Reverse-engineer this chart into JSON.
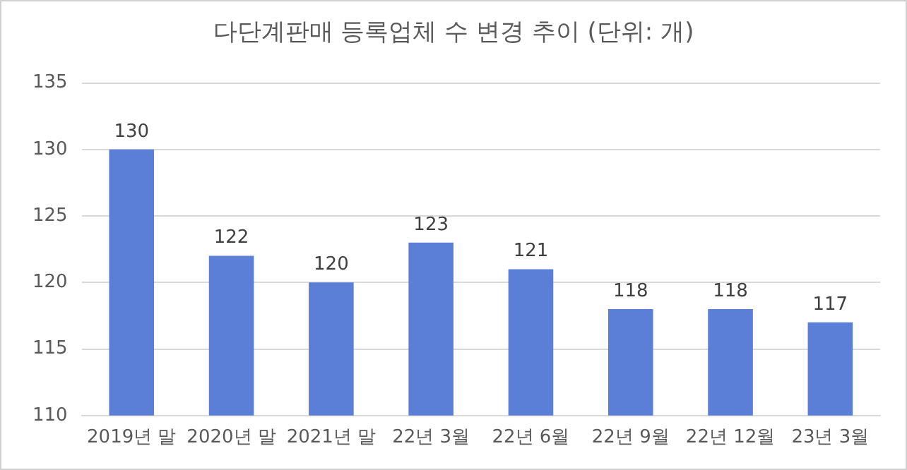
{
  "chart_data": {
    "type": "bar",
    "title": "다단계판매 등록업체 수 변경 추이 (단위: 개)",
    "categories": [
      "2019년 말",
      "2020년 말",
      "2021년 말",
      "22년 3월",
      "22년 6월",
      "22년 9월",
      "22년 12월",
      "23년 3월"
    ],
    "values": [
      130,
      122,
      120,
      123,
      121,
      118,
      118,
      117
    ],
    "color": "#5b7fd6",
    "ylim": [
      110,
      135
    ],
    "yticks": [
      110,
      115,
      120,
      125,
      130,
      135
    ],
    "grid": "y",
    "data_labels": true,
    "legend": false
  }
}
